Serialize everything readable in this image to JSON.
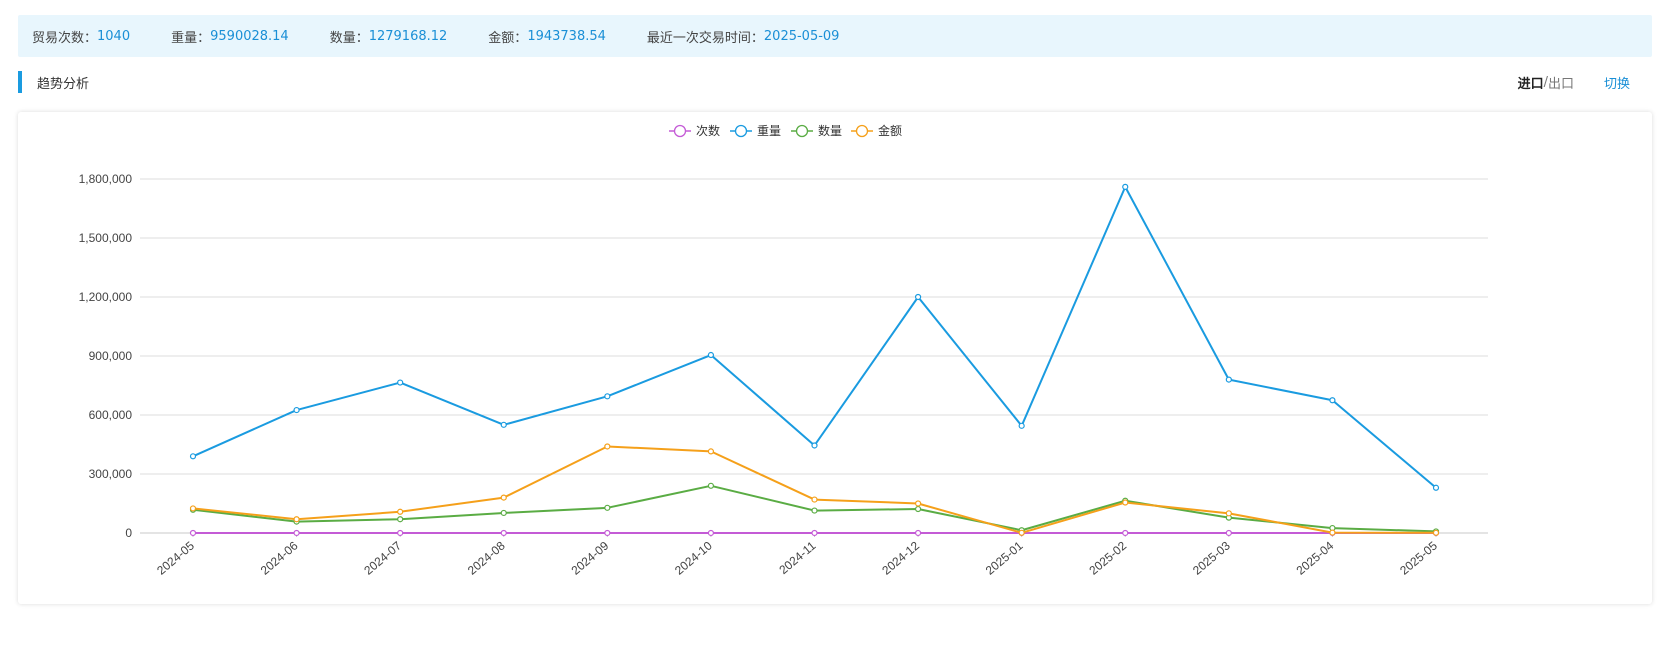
{
  "stats": {
    "trade_count_label": "贸易次数：",
    "trade_count_value": "1040",
    "weight_label": "重量：",
    "weight_value": "9590028.14",
    "quantity_label": "数量：",
    "quantity_value": "1279168.12",
    "amount_label": "金额：",
    "amount_value": "1943738.54",
    "last_trade_label": "最近一次交易时间：",
    "last_trade_value": "2025-05-09"
  },
  "section": {
    "title": "趋势分析",
    "import_label": "进口",
    "separator": "/ ",
    "export_label": "出口",
    "switch_label": "切换"
  },
  "colors": {
    "accent": "#1a9be0",
    "value_text": "#1a8fd6",
    "stats_bg": "#e8f6fd"
  },
  "chart_data": {
    "type": "line",
    "categories": [
      "2024-05",
      "2024-06",
      "2024-07",
      "2024-08",
      "2024-09",
      "2024-10",
      "2024-11",
      "2024-12",
      "2025-01",
      "2025-02",
      "2025-03",
      "2025-04",
      "2025-05"
    ],
    "ylim": [
      0,
      1800000
    ],
    "yticks": [
      0,
      300000,
      600000,
      900000,
      1200000,
      1500000,
      1800000
    ],
    "ytick_labels": [
      "0",
      "300,000",
      "600,000",
      "900,000",
      "1,200,000",
      "1,500,000",
      "1,800,000"
    ],
    "grid": true,
    "legend_position": "top-center",
    "series": [
      {
        "name": "次数",
        "color": "#c45bd6",
        "values": [
          80,
          85,
          90,
          80,
          85,
          90,
          80,
          85,
          70,
          90,
          85,
          80,
          60
        ]
      },
      {
        "name": "重量",
        "color": "#1a9be0",
        "values": [
          390000,
          625000,
          765000,
          550000,
          695000,
          905000,
          445000,
          1200000,
          545000,
          1760000,
          780000,
          675000,
          230000
        ]
      },
      {
        "name": "数量",
        "color": "#5aac44",
        "values": [
          118000,
          58000,
          70000,
          102000,
          128000,
          240000,
          114000,
          122000,
          14000,
          164000,
          78000,
          25000,
          8000
        ]
      },
      {
        "name": "金额",
        "color": "#f5a01a",
        "values": [
          125000,
          70000,
          108000,
          180000,
          440000,
          415000,
          170000,
          150000,
          1000,
          155000,
          100000,
          2000,
          1000
        ]
      }
    ]
  }
}
